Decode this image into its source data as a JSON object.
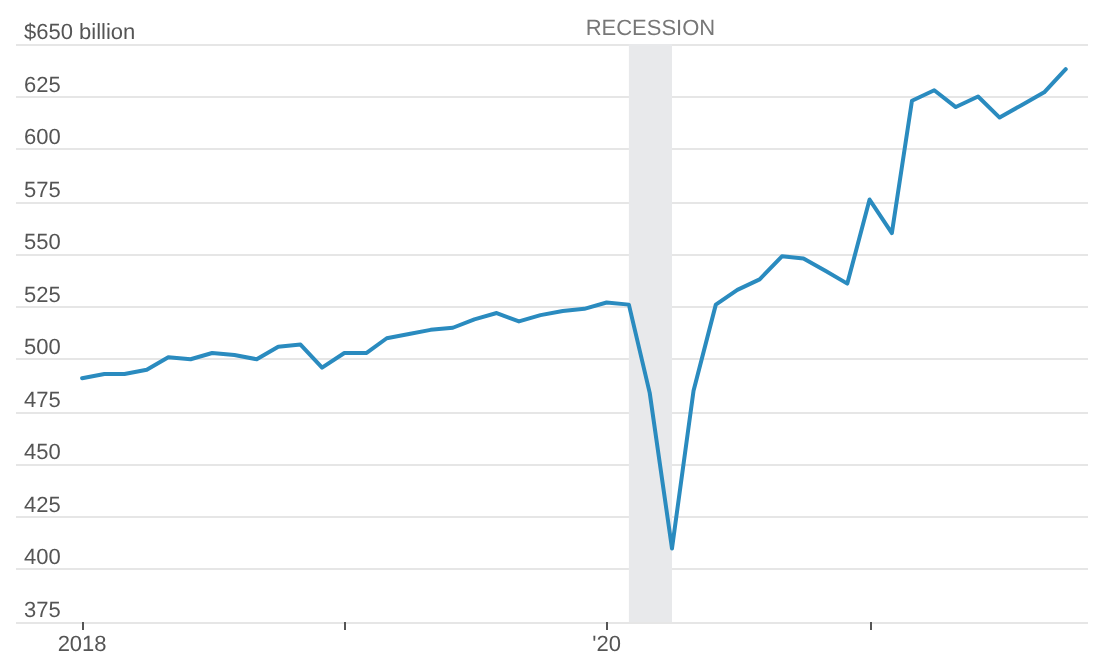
{
  "chart_data": {
    "type": "line",
    "x": [
      "2018-01",
      "2018-02",
      "2018-03",
      "2018-04",
      "2018-05",
      "2018-06",
      "2018-07",
      "2018-08",
      "2018-09",
      "2018-10",
      "2018-11",
      "2018-12",
      "2019-01",
      "2019-02",
      "2019-03",
      "2019-04",
      "2019-05",
      "2019-06",
      "2019-07",
      "2019-08",
      "2019-09",
      "2019-10",
      "2019-11",
      "2019-12",
      "2020-01",
      "2020-02",
      "2020-03",
      "2020-04",
      "2020-05",
      "2020-06",
      "2020-07",
      "2020-08",
      "2020-09",
      "2020-10",
      "2020-11",
      "2020-12",
      "2021-01",
      "2021-02",
      "2021-03",
      "2021-04",
      "2021-05",
      "2021-06",
      "2021-07",
      "2021-08",
      "2021-09",
      "2021-10"
    ],
    "series": [
      {
        "color": "#2a8bbf",
        "values": [
          491,
          493,
          493,
          495,
          501,
          500,
          503,
          502,
          500,
          506,
          507,
          496,
          503,
          503,
          510,
          512,
          514,
          515,
          519,
          522,
          518,
          521,
          523,
          524,
          527,
          526,
          484,
          410,
          485,
          526,
          533,
          538,
          549,
          548,
          542,
          536,
          576,
          560,
          623,
          628,
          620,
          625,
          615,
          621,
          627,
          638
        ]
      }
    ],
    "xlim": [
      "2017-10",
      "2021-11"
    ],
    "xticks": [
      {
        "value": "2018-01",
        "label": "2018"
      },
      {
        "value": "2019-01",
        "label": null
      },
      {
        "value": "2020-01",
        "label": "'20"
      },
      {
        "value": "2021-01",
        "label": null
      }
    ],
    "ylim": [
      375,
      650
    ],
    "yticks": [
      375,
      400,
      425,
      450,
      475,
      500,
      525,
      550,
      575,
      600,
      625,
      {
        "value": 650,
        "label": "$650 billion"
      }
    ],
    "bands": [
      {
        "axis": "x",
        "from": "2020-02",
        "to": "2020-04",
        "label": "RECESSION",
        "color": "#e8e9eb"
      }
    ],
    "grid": "y",
    "marker": "none",
    "line_style": "solid"
  }
}
